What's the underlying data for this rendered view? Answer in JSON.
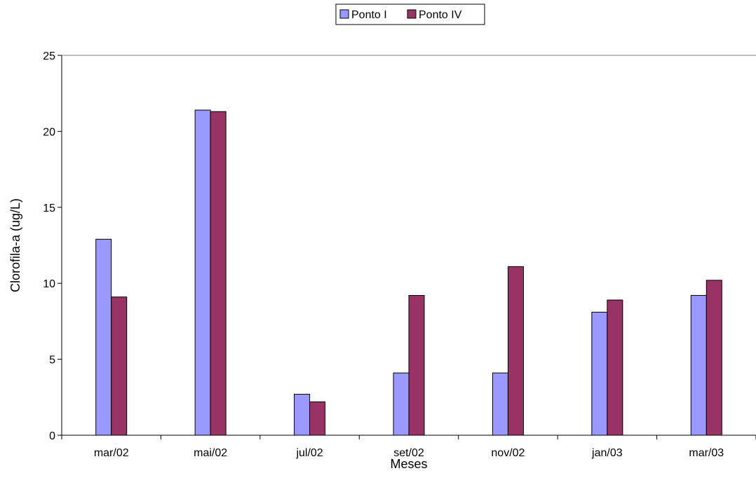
{
  "chart_data": {
    "type": "bar",
    "categories": [
      "mar/02",
      "mai/02",
      "jul/02",
      "set/02",
      "nov/02",
      "jan/03",
      "mar/03"
    ],
    "series": [
      {
        "name": "Ponto I",
        "color": "#9999ff",
        "values": [
          12.9,
          21.4,
          2.7,
          4.1,
          4.1,
          8.1,
          9.2
        ]
      },
      {
        "name": "Ponto IV",
        "color": "#993366",
        "values": [
          9.1,
          21.3,
          2.2,
          9.2,
          11.1,
          8.9,
          10.2
        ]
      }
    ],
    "xlabel": "Meses",
    "ylabel": "Clorofila-a (ug/L)",
    "ylim": [
      0,
      25
    ],
    "yticks": [
      0,
      5,
      10,
      15,
      20,
      25
    ],
    "legend_position": "top-center",
    "grid": false
  }
}
